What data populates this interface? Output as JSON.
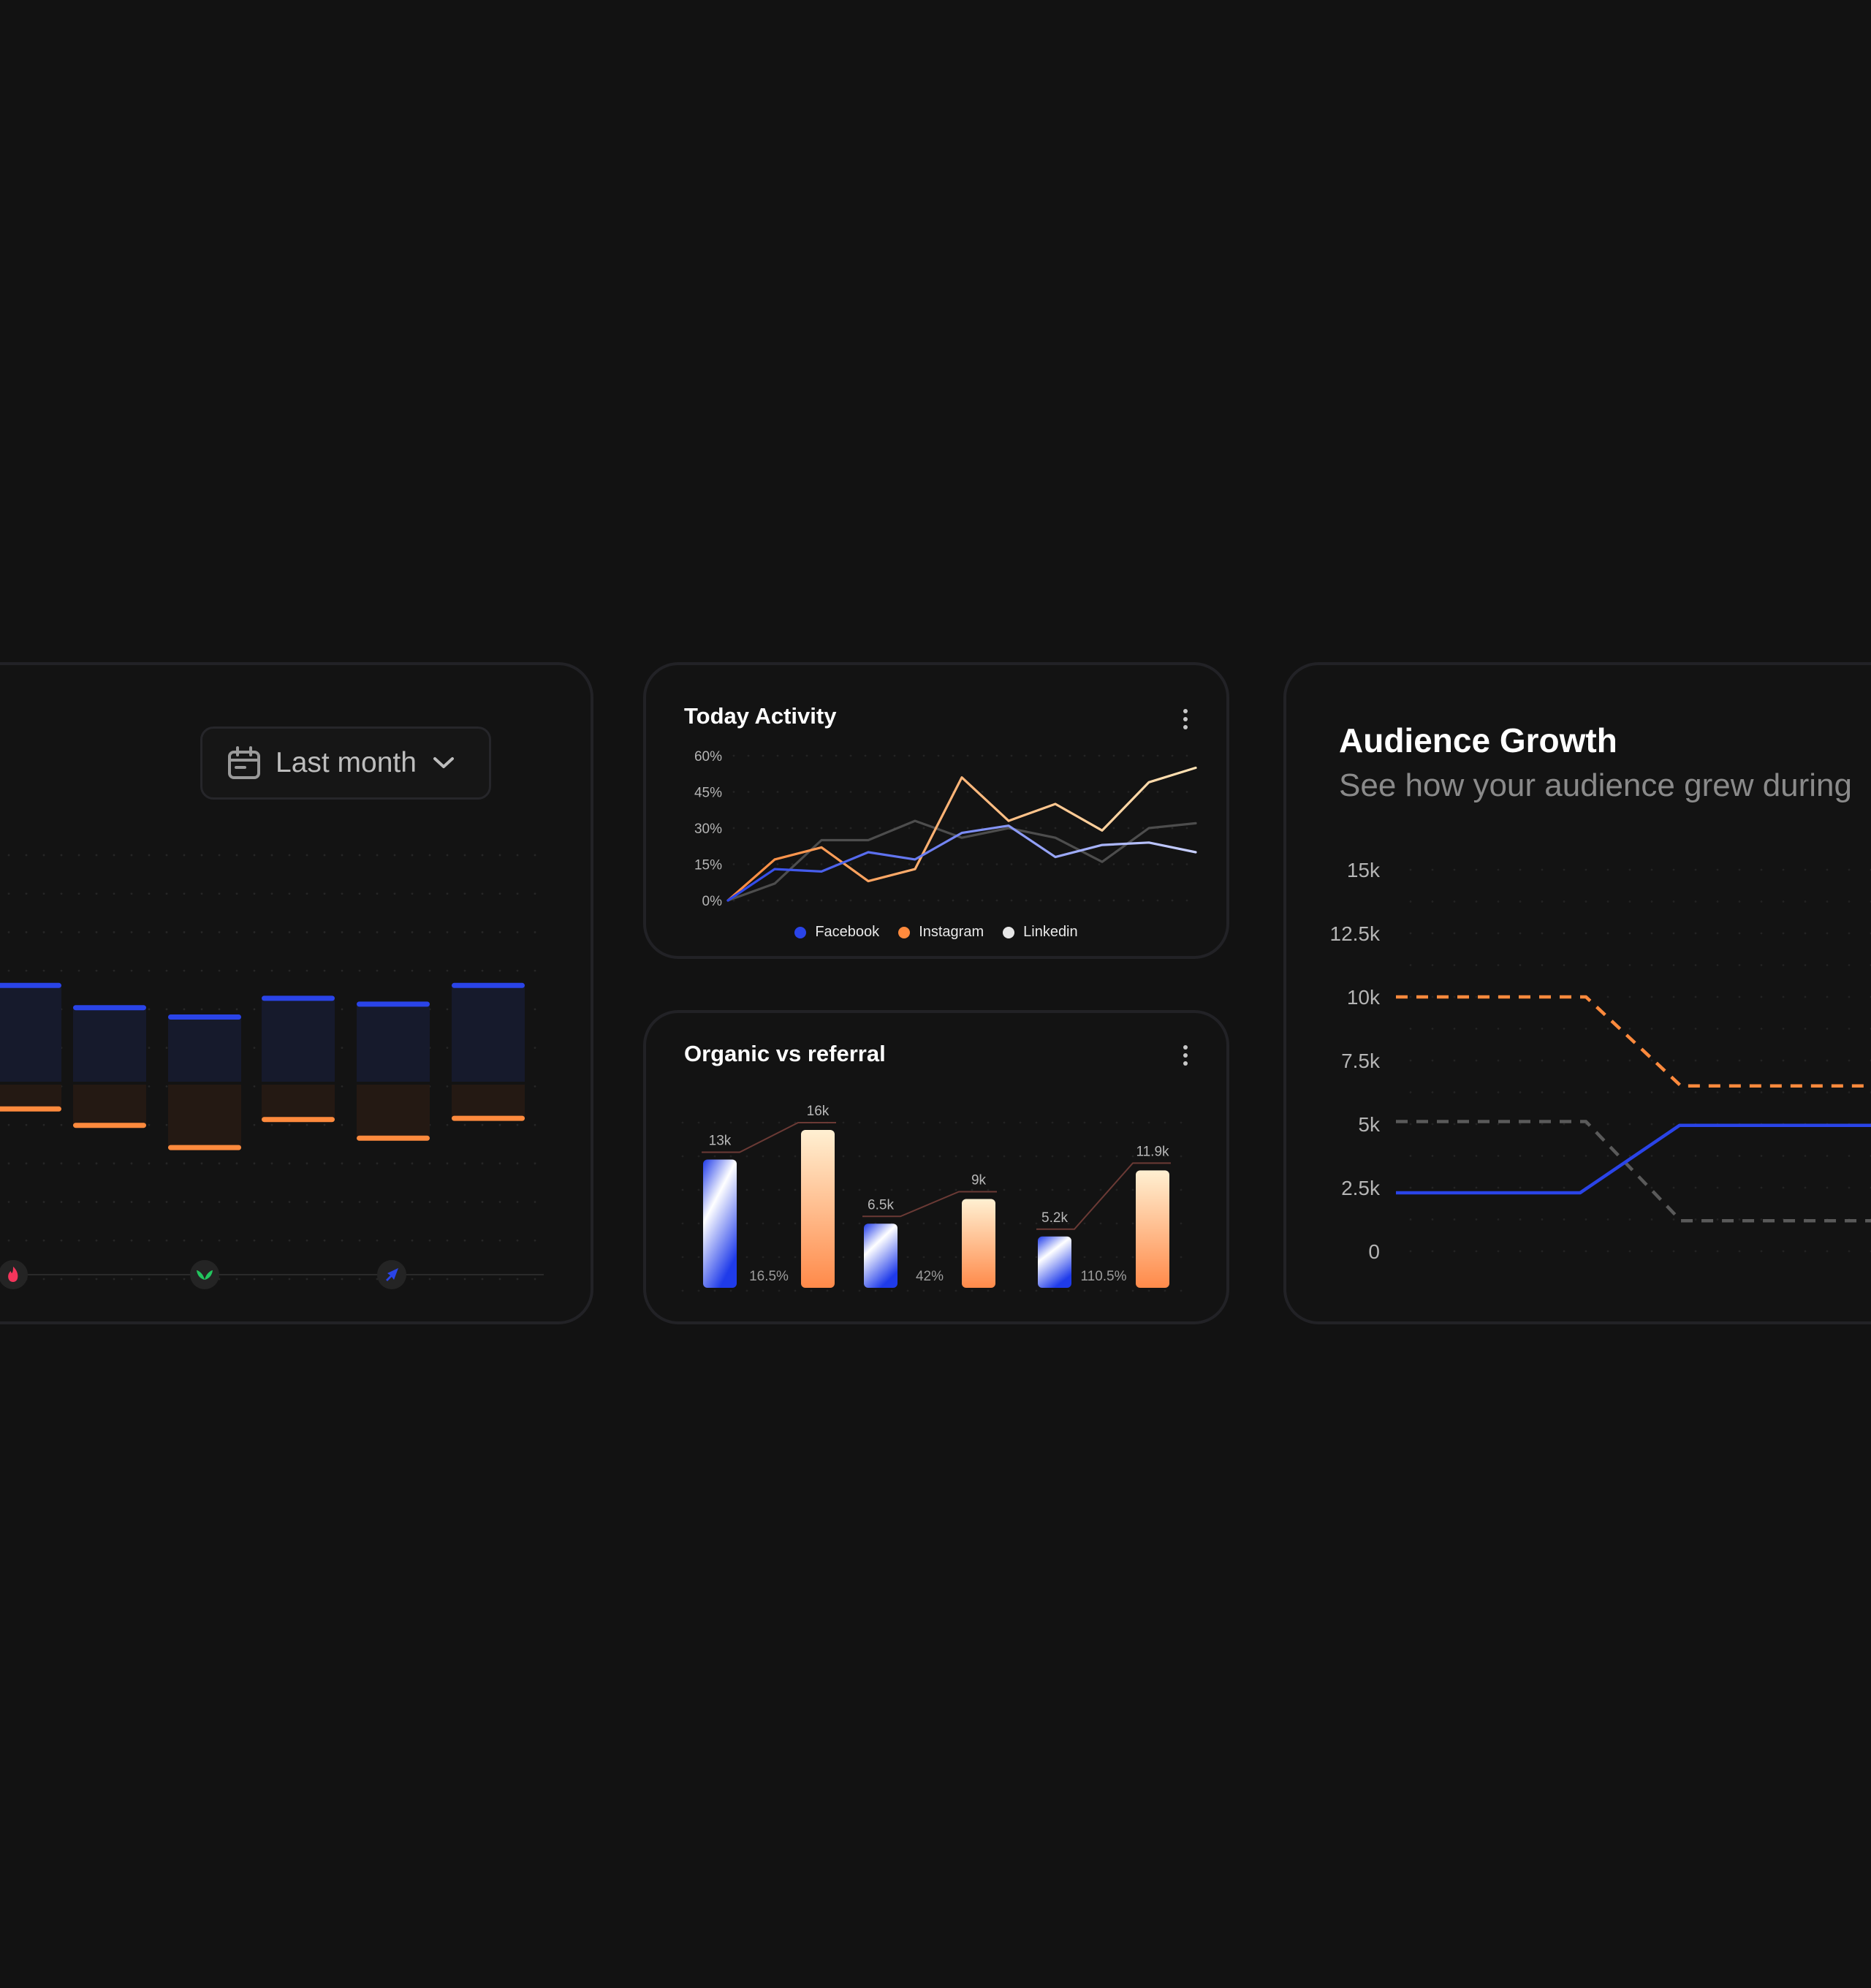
{
  "filter": {
    "label": "Last month",
    "icon": "calendar-icon",
    "chevron": "chevron-down-icon"
  },
  "colors": {
    "background": "#121212",
    "card": "#131313",
    "border": "#222226",
    "blue": "#2a44e8",
    "orange": "#ff8a3d",
    "linkedin": "#e6e6e6",
    "grey": "#5a5a5a"
  },
  "left_card": {
    "chart_data": {
      "type": "bar",
      "description_free": true,
      "series": [
        {
          "name": "",
          "color": "#2a44e8",
          "values": [
            8.2,
            6.3,
            5.5,
            7.1,
            6.6,
            8.2
          ]
        },
        {
          "name": "",
          "color": "#ff8a3d",
          "values": [
            2.3,
            3.7,
            5.6,
            3.2,
            4.8,
            3.1
          ]
        }
      ],
      "grid": true,
      "axis_icons": [
        "flame-icon",
        "leaf-icon",
        "rocket-icon"
      ],
      "axis_icon_colors": [
        "#f4355b",
        "#22c55e",
        "#2a44e8"
      ]
    }
  },
  "activity": {
    "title": "Today Activity",
    "chart_data": {
      "type": "line",
      "title": "Today Activity",
      "yticks": [
        "60%",
        "45%",
        "30%",
        "15%",
        "0%"
      ],
      "ylim": [
        0,
        60
      ],
      "x": [
        0,
        1,
        2,
        3,
        4,
        5,
        6,
        7,
        8,
        9,
        10
      ],
      "grid": true,
      "legend_position": "bottom",
      "series": [
        {
          "name": "Facebook",
          "color": "#2a44e8",
          "values": [
            0,
            13,
            12,
            20,
            17,
            28,
            31,
            18,
            23,
            24,
            20
          ]
        },
        {
          "name": "Instagram",
          "color": "#ff8a3d",
          "values": [
            0,
            17,
            22,
            8,
            13,
            51,
            33,
            40,
            29,
            49,
            55
          ]
        },
        {
          "name": "Linkedin",
          "color": "#e6e6e6",
          "values": [
            0,
            7,
            25,
            25,
            33,
            26,
            30,
            26,
            16,
            30,
            32
          ]
        }
      ]
    }
  },
  "organic": {
    "title": "Organic vs referral",
    "chart_data": {
      "type": "bar",
      "title": "Organic vs referral",
      "groups": [
        {
          "organic": 13,
          "referral": 16,
          "organic_label": "13k",
          "referral_label": "16k",
          "change": "16.5%"
        },
        {
          "organic": 6.5,
          "referral": 9,
          "organic_label": "6.5k",
          "referral_label": "9k",
          "change": "42%"
        },
        {
          "organic": 5.2,
          "referral": 11.9,
          "organic_label": "5.2k",
          "referral_label": "11.9k",
          "change": "110.5%"
        }
      ],
      "ylim": [
        0,
        16
      ],
      "grid": true
    }
  },
  "audience": {
    "title": "Audience Growth",
    "subtitle": "See how your audience grew during",
    "chart_data": {
      "type": "line",
      "title": "Audience Growth",
      "yticks": [
        "15k",
        "12.5k",
        "10k",
        "7.5k",
        "5k",
        "2.5k",
        "0"
      ],
      "ylim": [
        0,
        15000
      ],
      "x": [
        0,
        1,
        2,
        3,
        4,
        5
      ],
      "grid": true,
      "series": [
        {
          "name": "",
          "color": "#ff8a3d",
          "dashed": true,
          "values": [
            10000,
            10000,
            10000,
            6500,
            6500,
            6500
          ]
        },
        {
          "name": "",
          "color": "#5a5a5a",
          "dashed": true,
          "values": [
            5100,
            5100,
            5100,
            1200,
            1200,
            1200
          ]
        },
        {
          "name": "",
          "color": "#2a44e8",
          "dashed": false,
          "values": [
            2300,
            2300,
            2300,
            4950,
            4950,
            4950
          ]
        }
      ]
    }
  }
}
